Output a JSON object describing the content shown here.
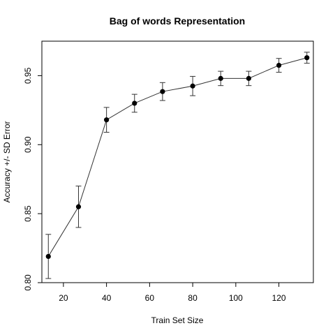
{
  "chart_data": {
    "type": "line",
    "title": "Bag of words Representation",
    "xlabel": "Train Set Size",
    "ylabel": "Accuracy +/- SD Error",
    "xlim": [
      10,
      136
    ],
    "ylim": [
      0.8,
      0.975
    ],
    "x_ticks": [
      20,
      40,
      60,
      80,
      100,
      120
    ],
    "y_ticks": [
      0.8,
      0.85,
      0.9,
      0.95
    ],
    "x_tick_labels": [
      "20",
      "40",
      "60",
      "80",
      "100",
      "120"
    ],
    "y_tick_labels": [
      "0.80",
      "0.85",
      "0.90",
      "0.95"
    ],
    "grid": false,
    "legend": "none",
    "series": [
      {
        "x": [
          13,
          27,
          40,
          53,
          66,
          80,
          93,
          106,
          120,
          133
        ],
        "y": [
          0.819,
          0.855,
          0.918,
          0.93,
          0.9385,
          0.9425,
          0.948,
          0.948,
          0.9575,
          0.963
        ],
        "err": [
          0.016,
          0.015,
          0.009,
          0.0065,
          0.0065,
          0.007,
          0.0052,
          0.0052,
          0.005,
          0.004
        ]
      }
    ],
    "line_color": "#333333",
    "marker_color": "#000000"
  }
}
